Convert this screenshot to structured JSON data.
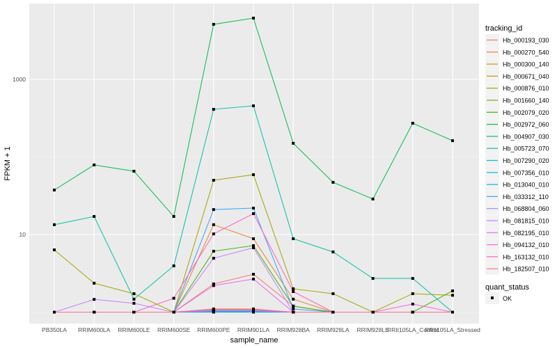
{
  "chart_data": {
    "type": "line",
    "xlabel": "sample_name",
    "ylabel": "FPKM + 1",
    "y_scale": "log10",
    "ylim": [
      0.7,
      9500
    ],
    "y_ticks": [
      10,
      1000
    ],
    "y_tick_labels": [
      "10",
      "1000"
    ],
    "grid": true,
    "legend_position": "right",
    "legend_title": "tracking_id",
    "shape_legend_title": "quant_status",
    "shape_legend_items": [
      "OK"
    ],
    "categories": [
      "PB350LA",
      "RRIM600LA",
      "RRIM600LE",
      "RRIM600SE",
      "RRIM600PE",
      "RRIM901LA",
      "RRIM928BA",
      "RRIM928LA",
      "RRIM928LE",
      "RRII105LA_Control",
      "RRII105LA_Stressed"
    ],
    "series": [
      {
        "name": "Hb_000193_030",
        "color": "#F8766D",
        "values": [
          1,
          1,
          1,
          1,
          2.31,
          3.08,
          1.2,
          1,
          1,
          1,
          1
        ]
      },
      {
        "name": "Hb_000270_540",
        "color": "#EA8331",
        "values": [
          1,
          1,
          1,
          1,
          13.4,
          8.84,
          1.47,
          1,
          1,
          1,
          1
        ]
      },
      {
        "name": "Hb_000300_140",
        "color": "#D89000",
        "values": [
          1,
          1,
          1,
          1,
          1.08,
          1.08,
          1,
          1,
          1,
          1,
          1
        ]
      },
      {
        "name": "Hb_000671_040",
        "color": "#C09B00",
        "values": [
          1,
          1,
          1,
          1,
          1.05,
          1.05,
          1,
          1,
          1,
          1,
          1
        ]
      },
      {
        "name": "Hb_000876_010",
        "color": "#A3A500",
        "values": [
          6.35,
          2.36,
          1.73,
          1,
          50.1,
          59.1,
          2.0,
          1.73,
          1,
          1.73,
          1.65
        ]
      },
      {
        "name": "Hb_001660_140",
        "color": "#7CAE00",
        "values": [
          1,
          1,
          1,
          1,
          1.05,
          1.05,
          1,
          1,
          1,
          1,
          1
        ]
      },
      {
        "name": "Hb_002079_020",
        "color": "#39B600",
        "values": [
          1,
          1,
          1,
          1,
          6.1,
          7.2,
          1.19,
          1,
          1,
          1,
          1.88
        ]
      },
      {
        "name": "Hb_002972_060",
        "color": "#00BB4E",
        "values": [
          37.5,
          78.9,
          65.5,
          17.1,
          5115,
          6155,
          150,
          47.1,
          28.7,
          272,
          162
        ]
      },
      {
        "name": "Hb_004907_030",
        "color": "#00BF7D",
        "values": [
          1,
          1,
          1,
          1,
          1.03,
          1.03,
          1,
          1,
          1,
          1,
          1
        ]
      },
      {
        "name": "Hb_005723_070",
        "color": "#00C1A3",
        "values": [
          13.4,
          17.1,
          1.47,
          3.95,
          411,
          456,
          8.84,
          5.97,
          2.72,
          2.72,
          1
        ]
      },
      {
        "name": "Hb_007290_020",
        "color": "#00BFC4",
        "values": [
          1,
          1,
          1,
          1,
          1.02,
          1.02,
          1,
          1,
          1,
          1,
          1
        ]
      },
      {
        "name": "Hb_007356_010",
        "color": "#00BAE0",
        "values": [
          1,
          1,
          1,
          1,
          1.02,
          1.02,
          1,
          1,
          1,
          1,
          1
        ]
      },
      {
        "name": "Hb_013040_010",
        "color": "#00B0F6",
        "values": [
          1,
          1,
          1,
          1,
          1.0,
          1.0,
          1,
          1,
          1,
          1,
          1
        ]
      },
      {
        "name": "Hb_033312_110",
        "color": "#35A2FF",
        "values": [
          1,
          1,
          1,
          1,
          21.0,
          21.9,
          1.1,
          1,
          1,
          1,
          1
        ]
      },
      {
        "name": "Hb_068804_060",
        "color": "#9590FF",
        "values": [
          1,
          1,
          1,
          1,
          1.04,
          1.04,
          1,
          1,
          1,
          1,
          1
        ]
      },
      {
        "name": "Hb_081815_010",
        "color": "#C77CFF",
        "values": [
          1,
          1.46,
          1.3,
          1,
          4.95,
          6.76,
          1,
          1,
          1,
          1,
          1
        ]
      },
      {
        "name": "Hb_082195_010",
        "color": "#E76BF3",
        "values": [
          1,
          1,
          1,
          1,
          2.2,
          2.67,
          1,
          1,
          1,
          1,
          1
        ]
      },
      {
        "name": "Hb_094132_010",
        "color": "#FA62DB",
        "values": [
          1,
          1,
          1,
          1,
          1.06,
          1.06,
          1,
          1,
          1,
          1.27,
          1
        ]
      },
      {
        "name": "Hb_163132_010",
        "color": "#FF62BC",
        "values": [
          1,
          1,
          1,
          1.51,
          10.2,
          18.6,
          1.84,
          1,
          1,
          1,
          1
        ]
      },
      {
        "name": "Hb_182507_010",
        "color": "#FF6C91",
        "values": [
          1,
          1,
          1,
          1,
          1.1,
          1.1,
          1,
          1,
          1,
          1,
          1
        ]
      }
    ]
  }
}
